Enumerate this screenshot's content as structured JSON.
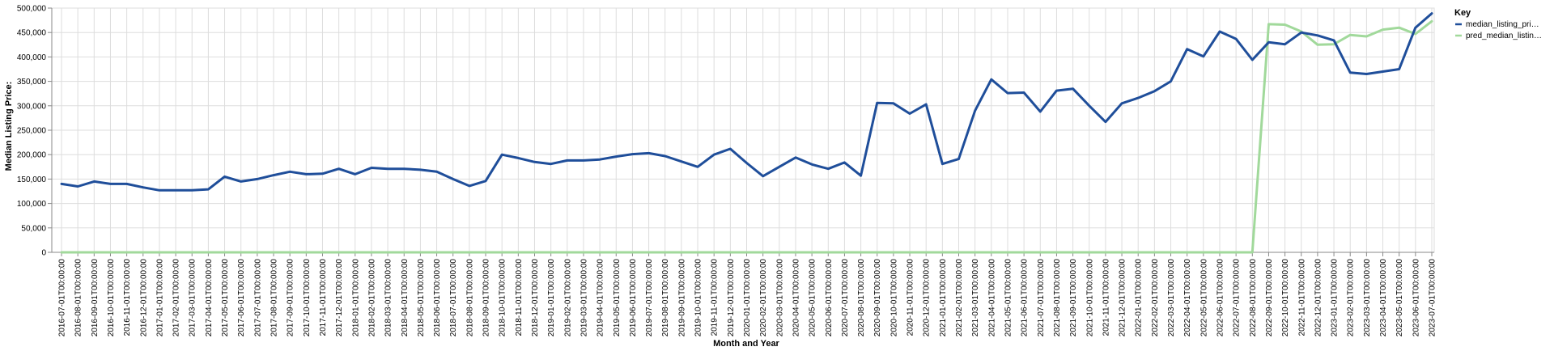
{
  "chart_data": {
    "type": "line",
    "xlabel": "Month and Year",
    "ylabel": "Median Listing Price:",
    "ylim": [
      0,
      500000
    ],
    "yticks": [
      "0",
      "50,000",
      "100,000",
      "150,000",
      "200,000",
      "250,000",
      "300,000",
      "350,000",
      "400,000",
      "450,000",
      "500,000"
    ],
    "grid": true,
    "legend": {
      "title": "Key",
      "placement": "right"
    },
    "x": [
      "2016-07-01T00:00:00",
      "2016-08-01T00:00:00",
      "2016-09-01T00:00:00",
      "2016-10-01T00:00:00",
      "2016-11-01T00:00:00",
      "2016-12-01T00:00:00",
      "2017-01-01T00:00:00",
      "2017-02-01T00:00:00",
      "2017-03-01T00:00:00",
      "2017-04-01T00:00:00",
      "2017-05-01T00:00:00",
      "2017-06-01T00:00:00",
      "2017-07-01T00:00:00",
      "2017-08-01T00:00:00",
      "2017-09-01T00:00:00",
      "2017-10-01T00:00:00",
      "2017-11-01T00:00:00",
      "2017-12-01T00:00:00",
      "2018-01-01T00:00:00",
      "2018-02-01T00:00:00",
      "2018-03-01T00:00:00",
      "2018-04-01T00:00:00",
      "2018-05-01T00:00:00",
      "2018-06-01T00:00:00",
      "2018-07-01T00:00:00",
      "2018-08-01T00:00:00",
      "2018-09-01T00:00:00",
      "2018-10-01T00:00:00",
      "2018-11-01T00:00:00",
      "2018-12-01T00:00:00",
      "2019-01-01T00:00:00",
      "2019-02-01T00:00:00",
      "2019-03-01T00:00:00",
      "2019-04-01T00:00:00",
      "2019-05-01T00:00:00",
      "2019-06-01T00:00:00",
      "2019-07-01T00:00:00",
      "2019-08-01T00:00:00",
      "2019-09-01T00:00:00",
      "2019-10-01T00:00:00",
      "2019-11-01T00:00:00",
      "2019-12-01T00:00:00",
      "2020-01-01T00:00:00",
      "2020-02-01T00:00:00",
      "2020-03-01T00:00:00",
      "2020-04-01T00:00:00",
      "2020-05-01T00:00:00",
      "2020-06-01T00:00:00",
      "2020-07-01T00:00:00",
      "2020-08-01T00:00:00",
      "2020-09-01T00:00:00",
      "2020-10-01T00:00:00",
      "2020-11-01T00:00:00",
      "2020-12-01T00:00:00",
      "2021-01-01T00:00:00",
      "2021-02-01T00:00:00",
      "2021-03-01T00:00:00",
      "2021-04-01T00:00:00",
      "2021-05-01T00:00:00",
      "2021-06-01T00:00:00",
      "2021-07-01T00:00:00",
      "2021-08-01T00:00:00",
      "2021-09-01T00:00:00",
      "2021-10-01T00:00:00",
      "2021-11-01T00:00:00",
      "2021-12-01T00:00:00",
      "2022-01-01T00:00:00",
      "2022-02-01T00:00:00",
      "2022-03-01T00:00:00",
      "2022-04-01T00:00:00",
      "2022-05-01T00:00:00",
      "2022-06-01T00:00:00",
      "2022-07-01T00:00:00",
      "2022-08-01T00:00:00",
      "2022-09-01T00:00:00",
      "2022-10-01T00:00:00",
      "2022-11-01T00:00:00",
      "2022-12-01T00:00:00",
      "2023-01-01T00:00:00",
      "2023-02-01T00:00:00",
      "2023-03-01T00:00:00",
      "2023-04-01T00:00:00",
      "2023-05-01T00:00:00",
      "2023-06-01T00:00:00",
      "2023-07-01T00:00:00"
    ],
    "series": [
      {
        "name": "median_listing_pri…",
        "color": "#1f4e9a",
        "values": [
          140000,
          135000,
          145000,
          140000,
          140000,
          133000,
          127000,
          127000,
          127000,
          129000,
          155000,
          145000,
          150000,
          158000,
          165000,
          160000,
          161000,
          171000,
          160000,
          173000,
          171000,
          171000,
          169000,
          165000,
          150000,
          136000,
          146000,
          200000,
          193000,
          185000,
          181000,
          188000,
          188000,
          190000,
          196000,
          201000,
          203000,
          197000,
          186000,
          175000,
          200000,
          212000,
          183000,
          156000,
          175000,
          194000,
          180000,
          171000,
          184000,
          157000,
          306000,
          305000,
          284000,
          303000,
          181000,
          191000,
          290000,
          354000,
          326000,
          327000,
          288000,
          331000,
          335000,
          300000,
          267000,
          305000,
          316000,
          330000,
          350000,
          416000,
          401000,
          452000,
          437000,
          394000,
          430000,
          426000,
          450000,
          444000,
          434000,
          368000,
          365000,
          370000,
          375000,
          460000,
          489000
        ]
      },
      {
        "name": "pred_median_listin…",
        "color": "#a1d99b",
        "values": [
          0,
          0,
          0,
          0,
          0,
          0,
          0,
          0,
          0,
          0,
          0,
          0,
          0,
          0,
          0,
          0,
          0,
          0,
          0,
          0,
          0,
          0,
          0,
          0,
          0,
          0,
          0,
          0,
          0,
          0,
          0,
          0,
          0,
          0,
          0,
          0,
          0,
          0,
          0,
          0,
          0,
          0,
          0,
          0,
          0,
          0,
          0,
          0,
          0,
          0,
          0,
          0,
          0,
          0,
          0,
          0,
          0,
          0,
          0,
          0,
          0,
          0,
          0,
          0,
          0,
          0,
          0,
          0,
          0,
          0,
          0,
          0,
          0,
          0,
          467000,
          466000,
          452000,
          425000,
          426000,
          445000,
          442000,
          456000,
          460000,
          447000,
          473000
        ]
      }
    ]
  }
}
